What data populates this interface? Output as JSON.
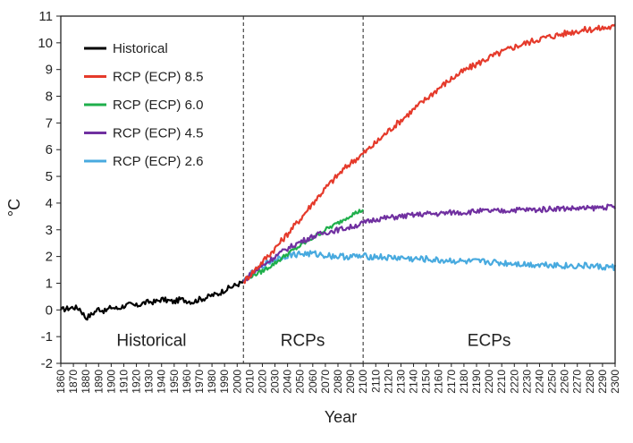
{
  "chart_data": {
    "type": "line",
    "xlabel": "Year",
    "ylabel": "°C",
    "xlim": [
      1860,
      2300
    ],
    "ylim": [
      -2,
      11
    ],
    "y_ticks": [
      -2,
      -1,
      0,
      1,
      2,
      3,
      4,
      5,
      6,
      7,
      8,
      9,
      10,
      11
    ],
    "x_ticks": [
      1860,
      1870,
      1880,
      1890,
      1900,
      1910,
      1920,
      1930,
      1940,
      1950,
      1960,
      1970,
      1980,
      1990,
      2000,
      2010,
      2020,
      2030,
      2040,
      2050,
      2060,
      2070,
      2080,
      2090,
      2100,
      2110,
      2120,
      2130,
      2140,
      2150,
      2160,
      2170,
      2180,
      2190,
      2200,
      2210,
      2220,
      2230,
      2240,
      2250,
      2260,
      2270,
      2280,
      2290,
      2300
    ],
    "grid": false,
    "legend_position": "top-left",
    "vertical_lines": [
      2005,
      2100
    ],
    "regions": [
      {
        "label": "Historical",
        "x_center": 1932
      },
      {
        "label": "RCPs",
        "x_center": 2052
      },
      {
        "label": "ECPs",
        "x_center": 2200
      }
    ],
    "series": [
      {
        "name": "Historical",
        "color": "#000000",
        "x": [
          1860,
          1865,
          1870,
          1875,
          1880,
          1885,
          1890,
          1895,
          1900,
          1905,
          1910,
          1915,
          1920,
          1925,
          1930,
          1935,
          1940,
          1945,
          1950,
          1955,
          1960,
          1965,
          1970,
          1975,
          1980,
          1985,
          1990,
          1995,
          2000,
          2005
        ],
        "y": [
          0.0,
          0.05,
          0.1,
          0.05,
          -0.3,
          -0.15,
          0.05,
          -0.05,
          0.1,
          0.05,
          0.15,
          0.2,
          0.15,
          0.25,
          0.3,
          0.3,
          0.4,
          0.35,
          0.3,
          0.4,
          0.35,
          0.3,
          0.4,
          0.45,
          0.55,
          0.6,
          0.75,
          0.85,
          0.95,
          1.05
        ]
      },
      {
        "name": "RCP (ECP) 8.5",
        "color": "#e53a2b",
        "x": [
          2005,
          2010,
          2020,
          2030,
          2040,
          2050,
          2060,
          2070,
          2080,
          2090,
          2100,
          2110,
          2120,
          2130,
          2140,
          2150,
          2160,
          2170,
          2180,
          2190,
          2200,
          2210,
          2220,
          2230,
          2240,
          2250,
          2260,
          2270,
          2280,
          2290,
          2300
        ],
        "y": [
          1.05,
          1.3,
          1.8,
          2.3,
          2.85,
          3.4,
          4.0,
          4.55,
          5.05,
          5.5,
          5.85,
          6.25,
          6.7,
          7.1,
          7.5,
          7.9,
          8.3,
          8.65,
          8.95,
          9.2,
          9.45,
          9.65,
          9.85,
          10.0,
          10.15,
          10.25,
          10.35,
          10.45,
          10.5,
          10.55,
          10.6
        ]
      },
      {
        "name": "RCP (ECP) 6.0",
        "color": "#1faf4b",
        "x": [
          2005,
          2010,
          2020,
          2030,
          2040,
          2050,
          2060,
          2070,
          2080,
          2090,
          2100
        ],
        "y": [
          1.05,
          1.25,
          1.45,
          1.75,
          2.1,
          2.4,
          2.7,
          3.0,
          3.25,
          3.55,
          3.75
        ]
      },
      {
        "name": "RCP (ECP) 4.5",
        "color": "#7030a0",
        "x": [
          2005,
          2010,
          2020,
          2030,
          2040,
          2050,
          2060,
          2070,
          2080,
          2090,
          2100,
          2110,
          2120,
          2130,
          2140,
          2150,
          2160,
          2170,
          2180,
          2190,
          2200,
          2210,
          2220,
          2230,
          2240,
          2250,
          2260,
          2270,
          2280,
          2290,
          2300
        ],
        "y": [
          1.05,
          1.3,
          1.65,
          2.0,
          2.3,
          2.55,
          2.75,
          2.9,
          3.0,
          3.1,
          3.25,
          3.4,
          3.45,
          3.5,
          3.55,
          3.6,
          3.6,
          3.65,
          3.65,
          3.7,
          3.7,
          3.7,
          3.75,
          3.75,
          3.75,
          3.8,
          3.8,
          3.8,
          3.8,
          3.85,
          3.85
        ]
      },
      {
        "name": "RCP (ECP) 2.6",
        "color": "#48aadf",
        "x": [
          2005,
          2010,
          2020,
          2030,
          2040,
          2050,
          2060,
          2070,
          2080,
          2090,
          2100,
          2110,
          2120,
          2130,
          2140,
          2150,
          2160,
          2170,
          2180,
          2190,
          2200,
          2210,
          2220,
          2230,
          2240,
          2250,
          2260,
          2270,
          2280,
          2290,
          2300
        ],
        "y": [
          1.05,
          1.3,
          1.65,
          1.9,
          2.05,
          2.1,
          2.1,
          2.05,
          2.0,
          2.0,
          2.0,
          2.0,
          1.95,
          1.95,
          1.9,
          1.9,
          1.85,
          1.85,
          1.8,
          1.8,
          1.8,
          1.75,
          1.75,
          1.7,
          1.7,
          1.7,
          1.65,
          1.65,
          1.65,
          1.6,
          1.6
        ]
      }
    ]
  }
}
